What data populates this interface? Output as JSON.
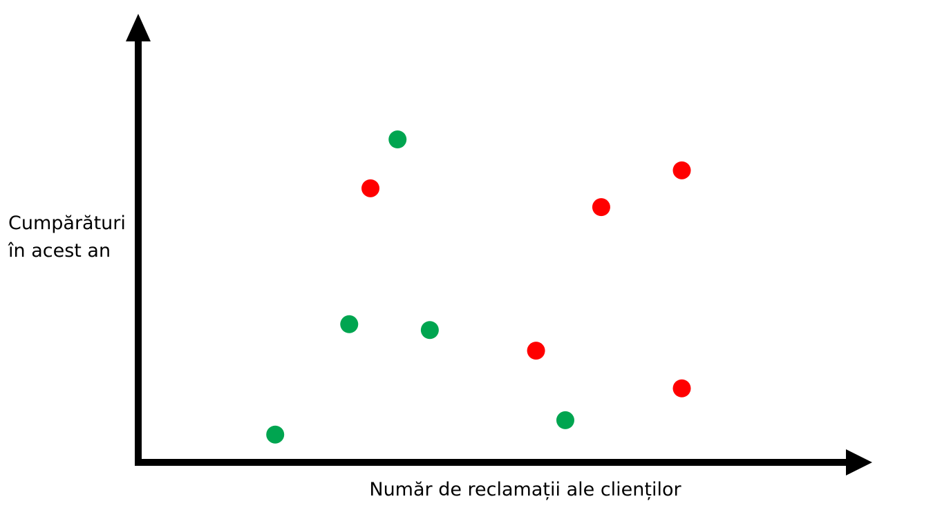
{
  "chart_data": {
    "type": "scatter",
    "x_label": "Număr de reclamații ale clienților",
    "y_label": "Cumpărături în acest an",
    "xlim": [
      0,
      100
    ],
    "ylim": [
      0,
      100
    ],
    "series": [
      {
        "color": "#00a550",
        "x": [
          35.4,
          28.8,
          39.8,
          18.7,
          58.3
        ],
        "values": [
          72,
          30.8,
          29.5,
          6.2,
          9.4
        ]
      },
      {
        "color": "#ff0000",
        "x": [
          31.7,
          63.2,
          74.2,
          54.3,
          74.2
        ],
        "values": [
          61.1,
          56.9,
          65.1,
          24.9,
          16.5
        ]
      }
    ]
  }
}
